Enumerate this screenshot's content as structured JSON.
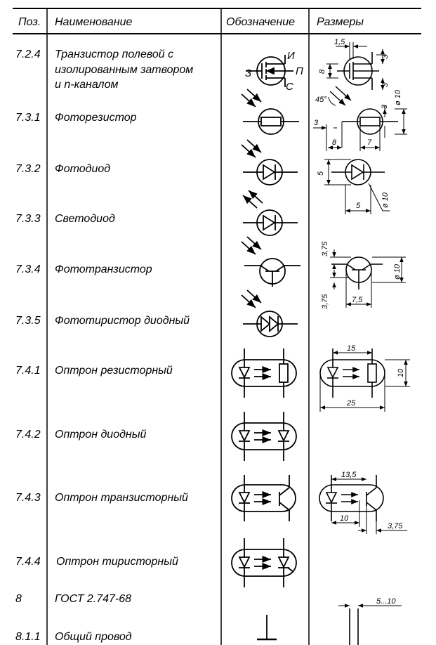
{
  "header": {
    "pos": "Поз.",
    "name": "Наименование",
    "designation": "Обозначение",
    "dimensions": "Размеры"
  },
  "rows": [
    {
      "pos": "7.2.4",
      "name_lines": [
        "Транзистор полевой с",
        "изолированным затвором",
        "и  n-каналом"
      ]
    },
    {
      "pos": "7.3.1",
      "name_lines": [
        "Фоторезистор"
      ]
    },
    {
      "pos": "7.3.2",
      "name_lines": [
        "Фотодиод"
      ]
    },
    {
      "pos": "7.3.3",
      "name_lines": [
        "Светодиод"
      ]
    },
    {
      "pos": "7.3.4",
      "name_lines": [
        "Фототранзистор"
      ]
    },
    {
      "pos": "7.3.5",
      "name_lines": [
        "Фототиристор диодный"
      ]
    },
    {
      "pos": "7.4.1",
      "name_lines": [
        "Оптрон резисторный"
      ]
    },
    {
      "pos": "7.4.2",
      "name_lines": [
        "Оптрон диодный"
      ]
    },
    {
      "pos": "7.4.3",
      "name_lines": [
        "Оптрон транзисторный"
      ]
    },
    {
      "pos": "7.4.4",
      "name_lines": [
        "Оптрон тиристорный"
      ]
    },
    {
      "pos": "8",
      "name_lines": [
        "ГОСТ  2.747-68"
      ]
    },
    {
      "pos": "8.1.1",
      "name_lines": [
        "Общий провод"
      ]
    }
  ],
  "pin_labels": {
    "source": "И",
    "gate": "З",
    "substrate": "П",
    "drain": "С"
  },
  "dimensions": {
    "fet": [
      "1,5",
      "3",
      "8",
      "3"
    ],
    "photoresistor": [
      "45°",
      "3",
      "ø 10",
      "3",
      "8",
      "7"
    ],
    "photodiode": [
      "5",
      "ø 10",
      "5"
    ],
    "phototransistor": [
      "3,75",
      "ø 10",
      "3,75",
      "7,5"
    ],
    "optocoupler_resistor": [
      "15",
      "10",
      "25"
    ],
    "optocoupler_transistor": [
      "13,5",
      "10",
      "3,75"
    ],
    "common_wire": [
      "5...10"
    ]
  }
}
